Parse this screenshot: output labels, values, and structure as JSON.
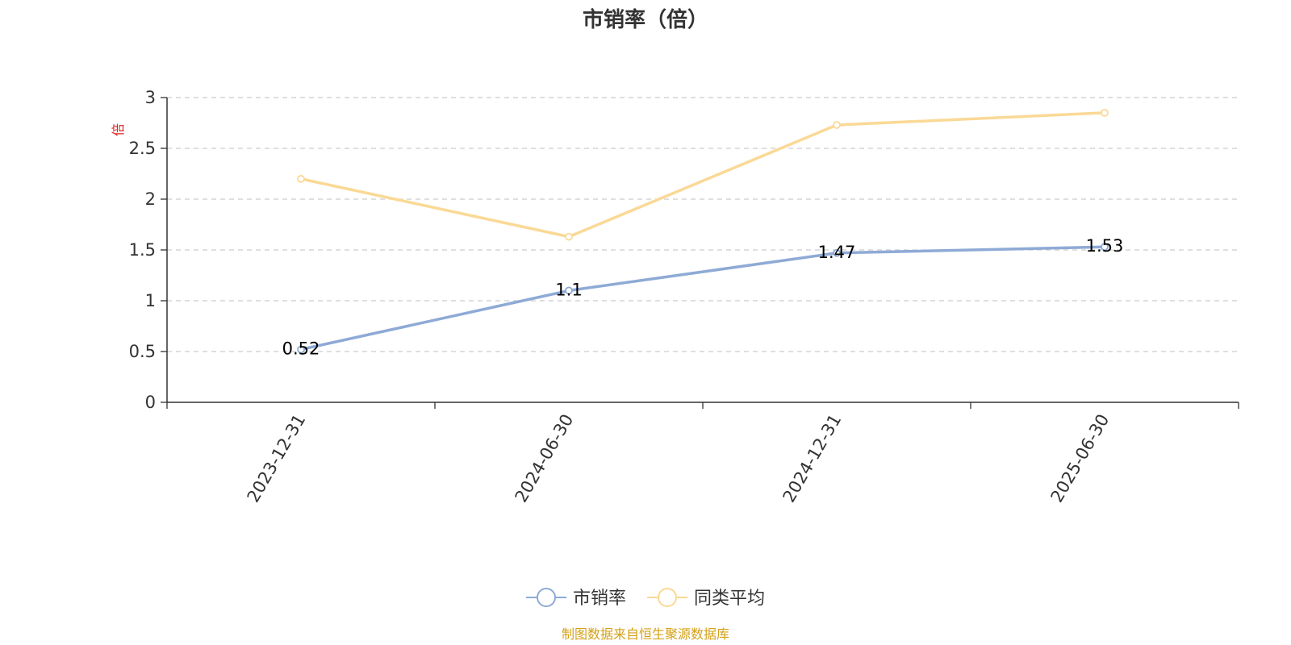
{
  "chart_data": {
    "type": "line",
    "title": "市销率（倍）",
    "ylabel": "倍",
    "ylim": [
      0,
      3
    ],
    "yticks": [
      "0",
      "0.5",
      "1",
      "1.5",
      "2",
      "2.5",
      "3"
    ],
    "categories": [
      "2023-12-31",
      "2024-06-30",
      "2024-12-31",
      "2025-06-30"
    ],
    "grid": true,
    "legend_position": "bottom",
    "series": [
      {
        "name": "市销率",
        "values": [
          0.52,
          1.1,
          1.47,
          1.53
        ],
        "labels": [
          "0.52",
          "1.1",
          "1.47",
          "1.53"
        ],
        "color": "#8eaad6"
      },
      {
        "name": "同类平均",
        "values": [
          2.2,
          1.63,
          2.73,
          2.85
        ],
        "color": "#fad996"
      }
    ]
  },
  "colors": {
    "axis": "#333333",
    "grid": "#cccccc",
    "unit_label": "#e02020",
    "source": "#d4a017"
  },
  "footer": {
    "source_text": "制图数据来自恒生聚源数据库"
  }
}
